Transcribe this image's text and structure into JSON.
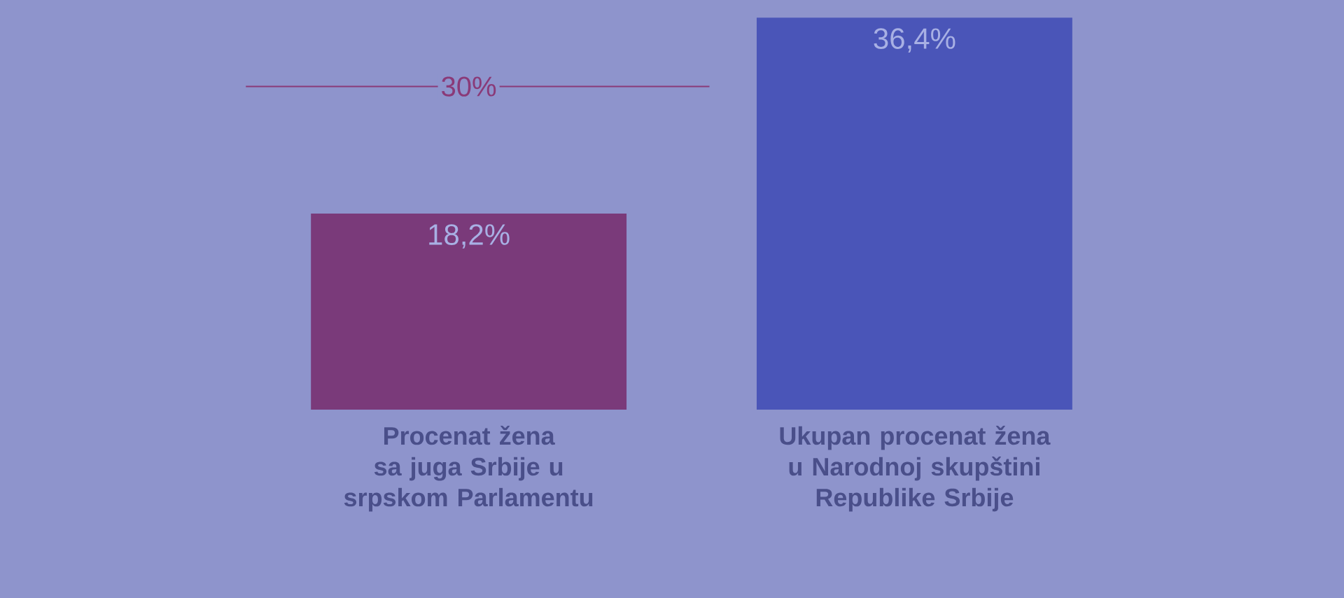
{
  "chart_data": {
    "type": "bar",
    "categories": [
      "Procenat žena sa juga Srbije u srpskom Parlamentu",
      "Ukupan procenat žena u Narodnoj skupštini Republike Srbije"
    ],
    "values": [
      18.2,
      36.4
    ],
    "colors": [
      "#7a3a7a",
      "#4a55b8"
    ],
    "value_labels": [
      "18,2%",
      "36,4%"
    ],
    "ref_lines": [
      {
        "axis": "y",
        "value": 30,
        "label": "30%",
        "color": "#8a3a78"
      }
    ]
  }
}
